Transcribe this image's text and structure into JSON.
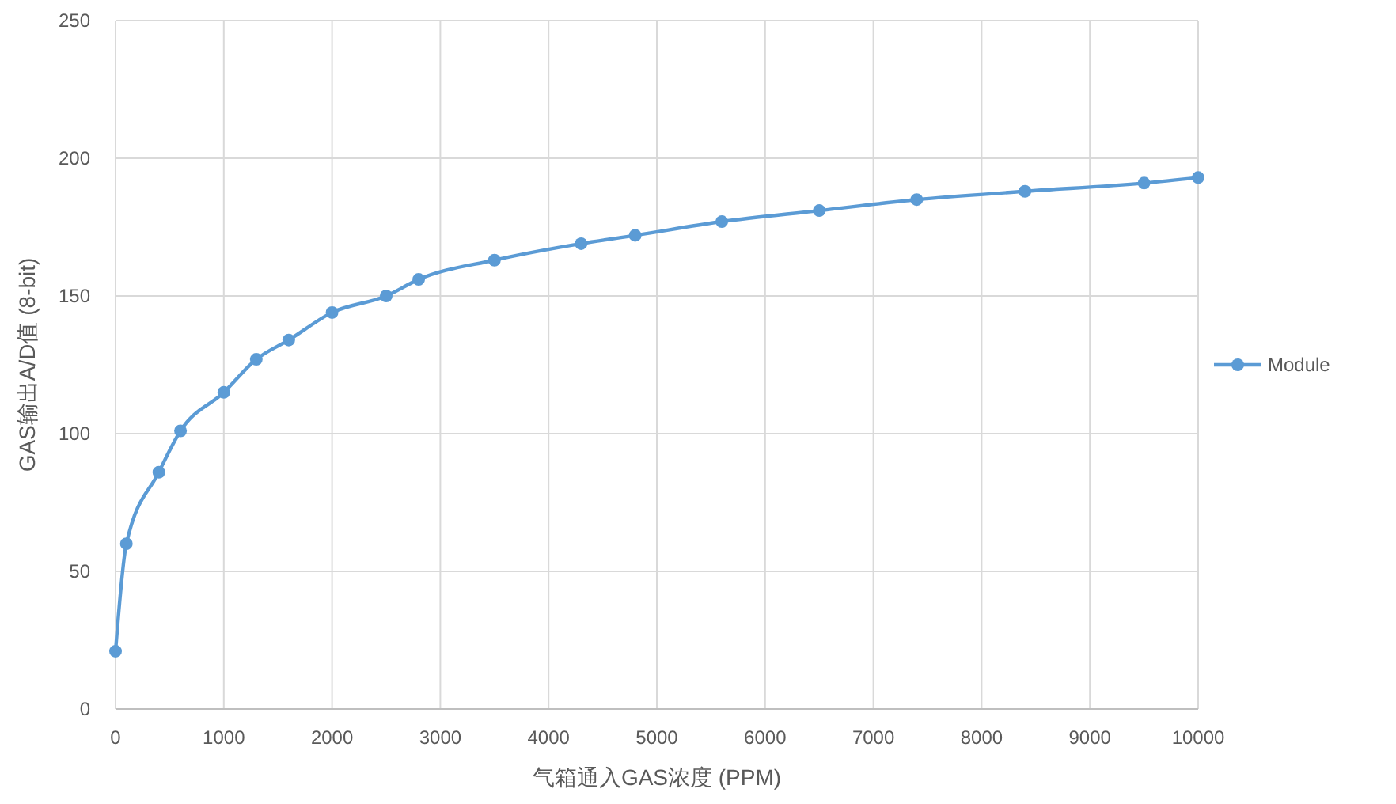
{
  "chart_data": {
    "type": "line",
    "xlabel": "气箱通入GAS浓度 (PPM)",
    "ylabel": "GAS输出A/D值 (8-bit)",
    "x": [
      0,
      100,
      400,
      600,
      1000,
      1300,
      1600,
      2000,
      2500,
      2800,
      3500,
      4300,
      4800,
      5600,
      6500,
      7400,
      8400,
      9500,
      10000
    ],
    "series": [
      {
        "name": "Module",
        "color": "#5b9bd5",
        "values": [
          21,
          60,
          86,
          101,
          115,
          127,
          134,
          144,
          150,
          156,
          163,
          169,
          172,
          177,
          181,
          185,
          188,
          191,
          193
        ]
      }
    ],
    "xlim": [
      0,
      10000
    ],
    "xticks": [
      0,
      1000,
      2000,
      3000,
      4000,
      5000,
      6000,
      7000,
      8000,
      9000,
      10000
    ],
    "ylim": [
      0,
      250
    ],
    "yticks": [
      0,
      50,
      100,
      150,
      200,
      250
    ],
    "grid": true,
    "legend": "right",
    "marker": "circle",
    "line_style": "solid"
  }
}
